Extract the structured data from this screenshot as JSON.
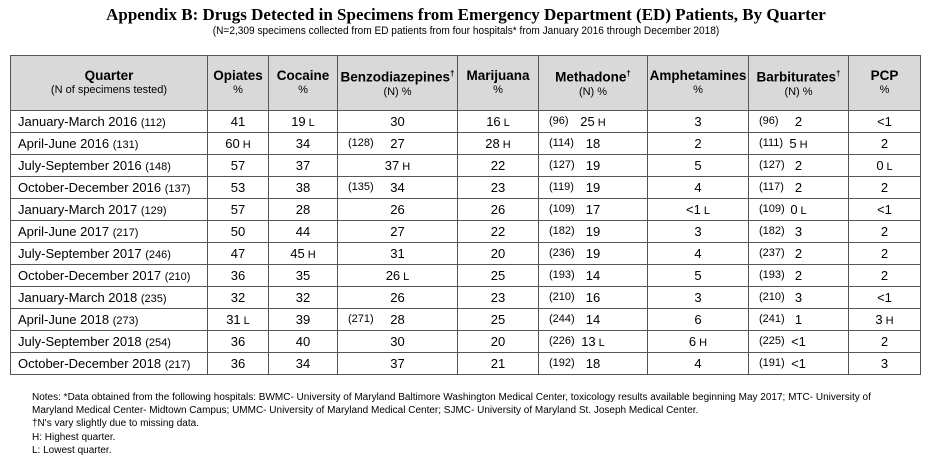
{
  "title": "Appendix B: Drugs Detected in Specimens from Emergency Department (ED) Patients, By Quarter",
  "subtitle": "(N=2,309 specimens collected from ED patients from four hospitals* from January 2016 through December 2018)",
  "headers": [
    {
      "label": "Quarter",
      "unit": "(N of specimens tested)"
    },
    {
      "label": "Opiates",
      "unit": "%"
    },
    {
      "label": "Cocaine",
      "unit": "%"
    },
    {
      "label": "Benzodiazepines",
      "sup": "†",
      "unit": "(N) %"
    },
    {
      "label": "Marijuana",
      "unit": "%"
    },
    {
      "label": "Methadone",
      "sup": "†",
      "unit": "(N) %"
    },
    {
      "label": "Amphetamines",
      "unit": "%"
    },
    {
      "label": "Barbiturates",
      "sup": "†",
      "unit": "(N) %"
    },
    {
      "label": "PCP",
      "unit": "%"
    }
  ],
  "rows": [
    {
      "q": "January-March 2016",
      "n": "(112)",
      "c": [
        {
          "v": "41"
        },
        {
          "v": "19",
          "f": "L"
        },
        {
          "v": "30"
        },
        {
          "v": "16",
          "f": "L"
        },
        {
          "n": "(96)",
          "v": "25",
          "f": "H"
        },
        {
          "v": "3"
        },
        {
          "n": "(96)",
          "v": "2"
        },
        {
          "v": "<1"
        }
      ]
    },
    {
      "q": "April-June 2016",
      "n": "(131)",
      "c": [
        {
          "v": "60",
          "f": "H"
        },
        {
          "v": "34"
        },
        {
          "n": "(128)",
          "v": "27"
        },
        {
          "v": "28",
          "f": "H"
        },
        {
          "n": "(114)",
          "v": "18"
        },
        {
          "v": "2"
        },
        {
          "n": "(111)",
          "v": "5",
          "f": "H"
        },
        {
          "v": "2"
        }
      ]
    },
    {
      "q": "July-September 2016",
      "n": "(148)",
      "c": [
        {
          "v": "57"
        },
        {
          "v": "37"
        },
        {
          "v": "37",
          "f": "H"
        },
        {
          "v": "22"
        },
        {
          "n": "(127)",
          "v": "19"
        },
        {
          "v": "5"
        },
        {
          "n": "(127)",
          "v": "2"
        },
        {
          "v": "0",
          "f": "L"
        }
      ]
    },
    {
      "q": "October-December 2016",
      "n": "(137)",
      "c": [
        {
          "v": "53"
        },
        {
          "v": "38"
        },
        {
          "n": "(135)",
          "v": "34"
        },
        {
          "v": "23"
        },
        {
          "n": "(119)",
          "v": "19"
        },
        {
          "v": "4"
        },
        {
          "n": "(117)",
          "v": "2"
        },
        {
          "v": "2"
        }
      ]
    },
    {
      "q": "January-March 2017",
      "n": "(129)",
      "c": [
        {
          "v": "57"
        },
        {
          "v": "28"
        },
        {
          "v": "26"
        },
        {
          "v": "26"
        },
        {
          "n": "(109)",
          "v": "17"
        },
        {
          "v": "<1",
          "f": "L"
        },
        {
          "n": "(109)",
          "v": "0",
          "f": "L"
        },
        {
          "v": "<1"
        }
      ]
    },
    {
      "q": "April-June 2017",
      "n": "(217)",
      "c": [
        {
          "v": "50"
        },
        {
          "v": "44"
        },
        {
          "v": "27"
        },
        {
          "v": "22"
        },
        {
          "n": "(182)",
          "v": "19"
        },
        {
          "v": "3"
        },
        {
          "n": "(182)",
          "v": "3"
        },
        {
          "v": "2"
        }
      ]
    },
    {
      "q": "July-September 2017",
      "n": "(246)",
      "c": [
        {
          "v": "47"
        },
        {
          "v": "45",
          "f": "H"
        },
        {
          "v": "31"
        },
        {
          "v": "20"
        },
        {
          "n": "(236)",
          "v": "19"
        },
        {
          "v": "4"
        },
        {
          "n": "(237)",
          "v": "2"
        },
        {
          "v": "2"
        }
      ]
    },
    {
      "q": "October-December 2017",
      "n": "(210)",
      "c": [
        {
          "v": "36"
        },
        {
          "v": "35"
        },
        {
          "v": "26",
          "f": "L"
        },
        {
          "v": "25"
        },
        {
          "n": "(193)",
          "v": "14"
        },
        {
          "v": "5"
        },
        {
          "n": "(193)",
          "v": "2"
        },
        {
          "v": "2"
        }
      ]
    },
    {
      "q": "January-March 2018",
      "n": "(235)",
      "c": [
        {
          "v": "32"
        },
        {
          "v": "32"
        },
        {
          "v": "26"
        },
        {
          "v": "23"
        },
        {
          "n": "(210)",
          "v": "16"
        },
        {
          "v": "3"
        },
        {
          "n": "(210)",
          "v": "3"
        },
        {
          "v": "<1"
        }
      ]
    },
    {
      "q": "April-June 2018",
      "n": "(273)",
      "c": [
        {
          "v": "31",
          "f": "L"
        },
        {
          "v": "39"
        },
        {
          "n": "(271)",
          "v": "28"
        },
        {
          "v": "25"
        },
        {
          "n": "(244)",
          "v": "14"
        },
        {
          "v": "6"
        },
        {
          "n": "(241)",
          "v": "1"
        },
        {
          "v": "3",
          "f": "H"
        }
      ]
    },
    {
      "q": "July-September 2018",
      "n": "(254)",
      "c": [
        {
          "v": "36"
        },
        {
          "v": "40"
        },
        {
          "v": "30"
        },
        {
          "v": "20"
        },
        {
          "n": "(226)",
          "v": "13",
          "f": "L"
        },
        {
          "v": "6",
          "f": "H"
        },
        {
          "n": "(225)",
          "v": "<1"
        },
        {
          "v": "2"
        }
      ]
    },
    {
      "q": "October-December 2018",
      "n": "(217)",
      "c": [
        {
          "v": "36"
        },
        {
          "v": "34"
        },
        {
          "v": "37"
        },
        {
          "v": "21"
        },
        {
          "n": "(192)",
          "v": "18"
        },
        {
          "v": "4"
        },
        {
          "n": "(191)",
          "v": "<1"
        },
        {
          "v": "3"
        }
      ]
    }
  ],
  "notes": [
    "Notes: *Data obtained from the following hospitals: BWMC- University of Maryland Baltimore Washington Medical Center, toxicology results available beginning May 2017; MTC- University of Maryland Medical Center- Midtown Campus; UMMC- University of Maryland Medical Center; SJMC- University of Maryland St. Joseph Medical Center.",
    "†N's vary slightly due to missing data.",
    "H: Highest quarter.",
    "L: Lowest quarter."
  ]
}
